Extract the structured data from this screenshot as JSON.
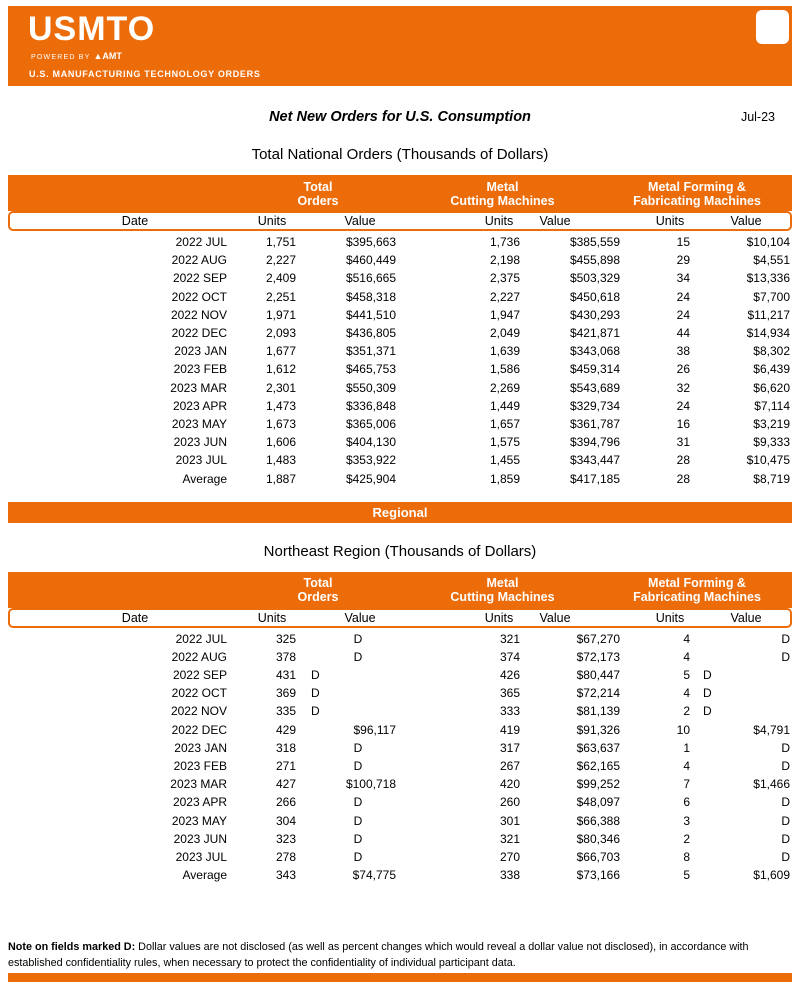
{
  "colors": {
    "orange": "#ED6C0A"
  },
  "brand": {
    "logo": "USMTO",
    "powered_by": "POWERED BY",
    "amt_icon": "▲",
    "amt": "AMT",
    "tagline": "U.S. MANUFACTURING TECHNOLOGY ORDERS"
  },
  "header": {
    "title": "Net New Orders for U.S. Consumption",
    "date": "Jul-23"
  },
  "regional_banner": "Regional",
  "national": {
    "title": "Total National Orders (Thousands of Dollars)",
    "groups": [
      {
        "line1": "Total",
        "line2": "Orders"
      },
      {
        "line1": "Metal",
        "line2": "Cutting Machines"
      },
      {
        "line1": "Metal Forming &",
        "line2": "Fabricating Machines"
      }
    ],
    "columns": [
      "Date",
      "Units",
      "Value",
      "Units",
      "Value",
      "Units",
      "Value"
    ],
    "rows": [
      {
        "date": "2022 JUL",
        "u1": "1,751",
        "v1": "$395,663",
        "u2": "1,736",
        "v2": "$385,559",
        "u3": "15",
        "v3": "$10,104"
      },
      {
        "date": "2022 AUG",
        "u1": "2,227",
        "v1": "$460,449",
        "u2": "2,198",
        "v2": "$455,898",
        "u3": "29",
        "v3": "$4,551"
      },
      {
        "date": "2022 SEP",
        "u1": "2,409",
        "v1": "$516,665",
        "u2": "2,375",
        "v2": "$503,329",
        "u3": "34",
        "v3": "$13,336"
      },
      {
        "date": "2022 OCT",
        "u1": "2,251",
        "v1": "$458,318",
        "u2": "2,227",
        "v2": "$450,618",
        "u3": "24",
        "v3": "$7,700"
      },
      {
        "date": "2022 NOV",
        "u1": "1,971",
        "v1": "$441,510",
        "u2": "1,947",
        "v2": "$430,293",
        "u3": "24",
        "v3": "$11,217"
      },
      {
        "date": "2022 DEC",
        "u1": "2,093",
        "v1": "$436,805",
        "u2": "2,049",
        "v2": "$421,871",
        "u3": "44",
        "v3": "$14,934"
      },
      {
        "date": "2023 JAN",
        "u1": "1,677",
        "v1": "$351,371",
        "u2": "1,639",
        "v2": "$343,068",
        "u3": "38",
        "v3": "$8,302"
      },
      {
        "date": "2023 FEB",
        "u1": "1,612",
        "v1": "$465,753",
        "u2": "1,586",
        "v2": "$459,314",
        "u3": "26",
        "v3": "$6,439"
      },
      {
        "date": "2023 MAR",
        "u1": "2,301",
        "v1": "$550,309",
        "u2": "2,269",
        "v2": "$543,689",
        "u3": "32",
        "v3": "$6,620"
      },
      {
        "date": "2023 APR",
        "u1": "1,473",
        "v1": "$336,848",
        "u2": "1,449",
        "v2": "$329,734",
        "u3": "24",
        "v3": "$7,114"
      },
      {
        "date": "2023 MAY",
        "u1": "1,673",
        "v1": "$365,006",
        "u2": "1,657",
        "v2": "$361,787",
        "u3": "16",
        "v3": "$3,219"
      },
      {
        "date": "2023 JUN",
        "u1": "1,606",
        "v1": "$404,130",
        "u2": "1,575",
        "v2": "$394,796",
        "u3": "31",
        "v3": "$9,333"
      },
      {
        "date": "2023 JUL",
        "u1": "1,483",
        "v1": "$353,922",
        "u2": "1,455",
        "v2": "$343,447",
        "u3": "28",
        "v3": "$10,475"
      }
    ],
    "average": {
      "date": "Average",
      "u1": "1,887",
      "v1": "$425,904",
      "u2": "1,859",
      "v2": "$417,185",
      "u3": "28",
      "v3": "$8,719"
    }
  },
  "northeast": {
    "title": "Northeast Region (Thousands of Dollars)",
    "groups": [
      {
        "line1": "Total",
        "line2": "Orders"
      },
      {
        "line1": "Metal",
        "line2": "Cutting Machines"
      },
      {
        "line1": "Metal Forming &",
        "line2": "Fabricating Machines"
      }
    ],
    "columns": [
      "Date",
      "Units",
      "Value",
      "Units",
      "Value",
      "Units",
      "Value"
    ],
    "rows": [
      {
        "date": "2022 JUL",
        "u1": "325",
        "v1": "D",
        "u2": "321",
        "v2": "$67,270",
        "u3": "4",
        "v3": "D"
      },
      {
        "date": "2022 AUG",
        "u1": "378",
        "v1": "D",
        "u2": "374",
        "v2": "$72,173",
        "u3": "4",
        "v3": "D"
      },
      {
        "date": "2022 SEP",
        "u1": "431",
        "d1": "D",
        "v1": "",
        "u2": "426",
        "v2": "$80,447",
        "u3": "5",
        "d3": "D",
        "v3": ""
      },
      {
        "date": "2022 OCT",
        "u1": "369",
        "d1": "D",
        "v1": "",
        "u2": "365",
        "v2": "$72,214",
        "u3": "4",
        "d3": "D",
        "v3": ""
      },
      {
        "date": "2022 NOV",
        "u1": "335",
        "d1": "D",
        "v1": "",
        "u2": "333",
        "v2": "$81,139",
        "u3": "2",
        "d3": "D",
        "v3": ""
      },
      {
        "date": "2022 DEC",
        "u1": "429",
        "v1": "$96,117",
        "u2": "419",
        "v2": "$91,326",
        "u3": "10",
        "v3": "$4,791"
      },
      {
        "date": "2023 JAN",
        "u1": "318",
        "v1": "D",
        "u2": "317",
        "v2": "$63,637",
        "u3": "1",
        "v3": "D"
      },
      {
        "date": "2023 FEB",
        "u1": "271",
        "v1": "D",
        "u2": "267",
        "v2": "$62,165",
        "u3": "4",
        "v3": "D"
      },
      {
        "date": "2023 MAR",
        "u1": "427",
        "v1": "$100,718",
        "u2": "420",
        "v2": "$99,252",
        "u3": "7",
        "v3": "$1,466"
      },
      {
        "date": "2023 APR",
        "u1": "266",
        "v1": "D",
        "u2": "260",
        "v2": "$48,097",
        "u3": "6",
        "v3": "D"
      },
      {
        "date": "2023 MAY",
        "u1": "304",
        "v1": "D",
        "u2": "301",
        "v2": "$66,388",
        "u3": "3",
        "v3": "D"
      },
      {
        "date": "2023 JUN",
        "u1": "323",
        "v1": "D",
        "u2": "321",
        "v2": "$80,346",
        "u3": "2",
        "v3": "D"
      },
      {
        "date": "2023 JUL",
        "u1": "278",
        "v1": "D",
        "u2": "270",
        "v2": "$66,703",
        "u3": "8",
        "v3": "D"
      }
    ],
    "average": {
      "date": "Average",
      "u1": "343",
      "v1": "$74,775",
      "u2": "338",
      "v2": "$73,166",
      "u3": "5",
      "v3": "$1,609"
    }
  },
  "footnote": {
    "bold": "Note on fields marked D:",
    "text": " Dollar values are not disclosed (as well as percent changes which would reveal a dollar value not disclosed), in accordance with established confidentiality rules, when necessary to protect the confidentiality of individual participant data."
  }
}
